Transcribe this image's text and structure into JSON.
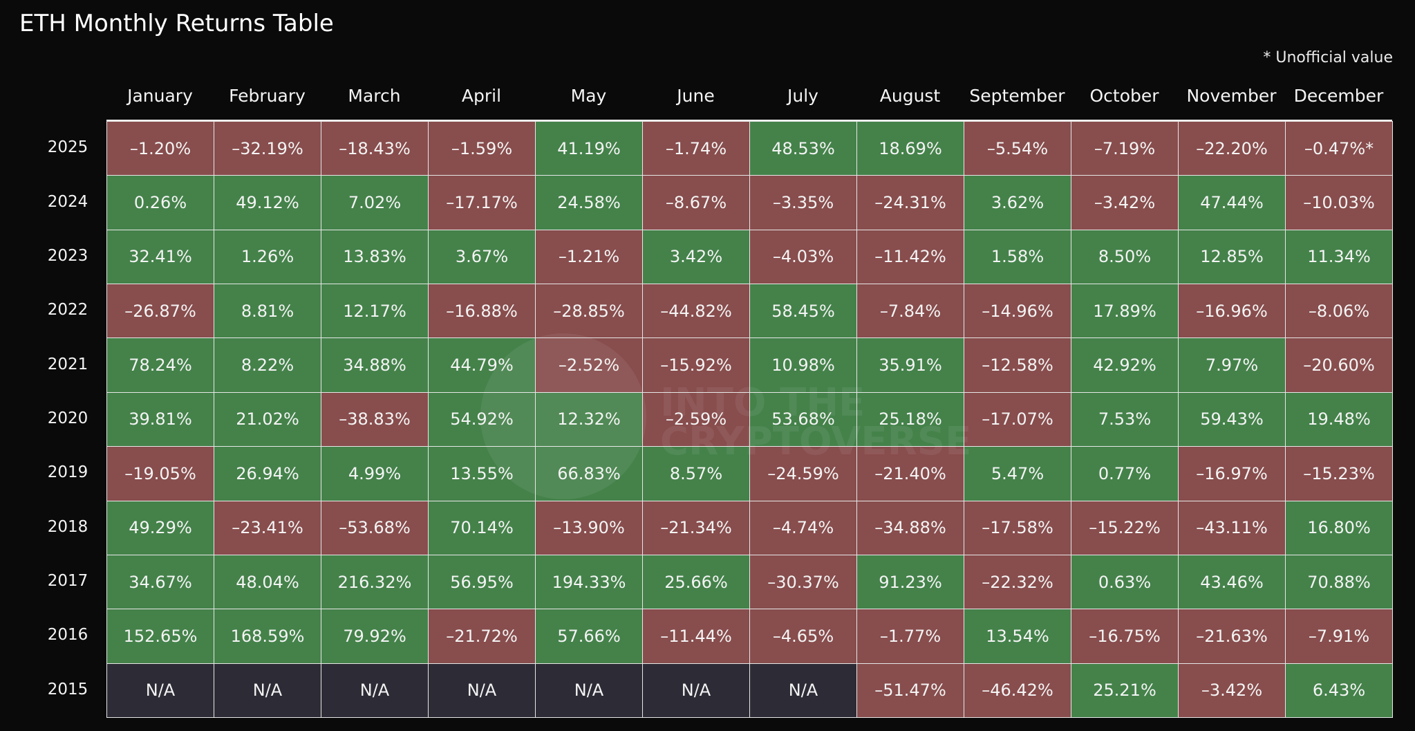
{
  "header": {
    "title": "ETH Monthly Returns Table",
    "note": "* Unofficial value"
  },
  "watermark": "INTO THE CRYPTOVERSE",
  "table": {
    "columns": [
      "January",
      "February",
      "March",
      "April",
      "May",
      "June",
      "July",
      "August",
      "September",
      "October",
      "November",
      "December"
    ],
    "rows": [
      {
        "year": "2025",
        "cells": [
          "–1.20%",
          "–32.19%",
          "–18.43%",
          "–1.59%",
          "41.19%",
          "–1.74%",
          "48.53%",
          "18.69%",
          "–5.54%",
          "–7.19%",
          "–22.20%",
          "–0.47%*"
        ]
      },
      {
        "year": "2024",
        "cells": [
          "0.26%",
          "49.12%",
          "7.02%",
          "–17.17%",
          "24.58%",
          "–8.67%",
          "–3.35%",
          "–24.31%",
          "3.62%",
          "–3.42%",
          "47.44%",
          "–10.03%"
        ]
      },
      {
        "year": "2023",
        "cells": [
          "32.41%",
          "1.26%",
          "13.83%",
          "3.67%",
          "–1.21%",
          "3.42%",
          "–4.03%",
          "–11.42%",
          "1.58%",
          "8.50%",
          "12.85%",
          "11.34%"
        ]
      },
      {
        "year": "2022",
        "cells": [
          "–26.87%",
          "8.81%",
          "12.17%",
          "–16.88%",
          "–28.85%",
          "–44.82%",
          "58.45%",
          "–7.84%",
          "–14.96%",
          "17.89%",
          "–16.96%",
          "–8.06%"
        ]
      },
      {
        "year": "2021",
        "cells": [
          "78.24%",
          "8.22%",
          "34.88%",
          "44.79%",
          "–2.52%",
          "–15.92%",
          "10.98%",
          "35.91%",
          "–12.58%",
          "42.92%",
          "7.97%",
          "–20.60%"
        ]
      },
      {
        "year": "2020",
        "cells": [
          "39.81%",
          "21.02%",
          "–38.83%",
          "54.92%",
          "12.32%",
          "–2.59%",
          "53.68%",
          "25.18%",
          "–17.07%",
          "7.53%",
          "59.43%",
          "19.48%"
        ]
      },
      {
        "year": "2019",
        "cells": [
          "–19.05%",
          "26.94%",
          "4.99%",
          "13.55%",
          "66.83%",
          "8.57%",
          "–24.59%",
          "–21.40%",
          "5.47%",
          "0.77%",
          "–16.97%",
          "–15.23%"
        ]
      },
      {
        "year": "2018",
        "cells": [
          "49.29%",
          "–23.41%",
          "–53.68%",
          "70.14%",
          "–13.90%",
          "–21.34%",
          "–4.74%",
          "–34.88%",
          "–17.58%",
          "–15.22%",
          "–43.11%",
          "16.80%"
        ]
      },
      {
        "year": "2017",
        "cells": [
          "34.67%",
          "48.04%",
          "216.32%",
          "56.95%",
          "194.33%",
          "25.66%",
          "–30.37%",
          "91.23%",
          "–22.32%",
          "0.63%",
          "43.46%",
          "70.88%"
        ]
      },
      {
        "year": "2016",
        "cells": [
          "152.65%",
          "168.59%",
          "79.92%",
          "–21.72%",
          "57.66%",
          "–11.44%",
          "–4.65%",
          "–1.77%",
          "13.54%",
          "–16.75%",
          "–21.63%",
          "–7.91%"
        ]
      },
      {
        "year": "2015",
        "cells": [
          "N/A",
          "N/A",
          "N/A",
          "N/A",
          "N/A",
          "N/A",
          "N/A",
          "–51.47%",
          "–46.42%",
          "25.21%",
          "–3.42%",
          "6.43%"
        ]
      }
    ],
    "colors": {
      "positive": "#44824a",
      "negative": "#884d4d",
      "missing": "#2d2c36"
    }
  }
}
